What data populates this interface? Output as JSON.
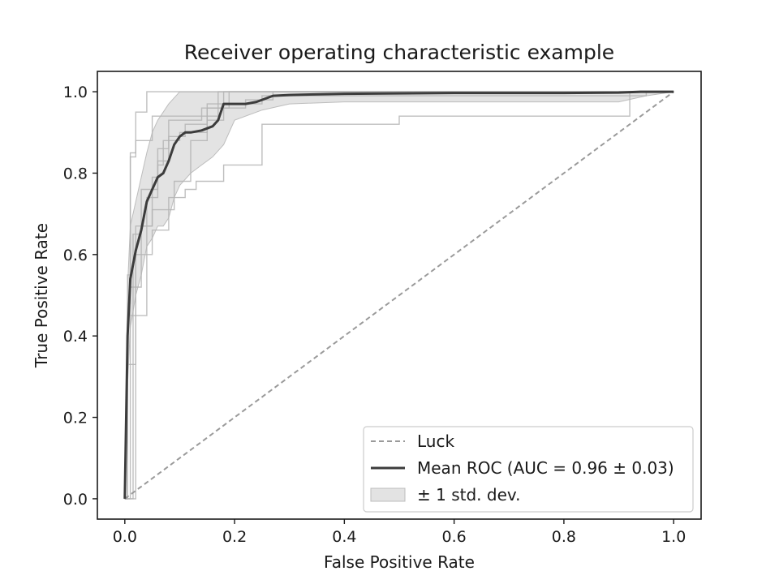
{
  "chart_data": {
    "type": "line",
    "title": "Receiver operating characteristic example",
    "xlabel": "False Positive Rate",
    "ylabel": "True Positive Rate",
    "xlim": [
      -0.05,
      1.05
    ],
    "ylim": [
      -0.05,
      1.05
    ],
    "xticks": [
      "0.0",
      "0.2",
      "0.4",
      "0.6",
      "0.8",
      "1.0"
    ],
    "yticks": [
      "0.0",
      "0.2",
      "0.4",
      "0.6",
      "0.8",
      "1.0"
    ],
    "grid": false,
    "legend_position": "lower-right",
    "legend": [
      {
        "label": "Luck",
        "style": "dashed-line"
      },
      {
        "label": "Mean ROC (AUC = 0.96 ± 0.03)",
        "style": "line"
      },
      {
        "label": "± 1 std. dev.",
        "style": "patch"
      }
    ],
    "colors": {
      "mean": "#3c3c3c",
      "fold": "#b4b4b4",
      "luck": "#9a9a9a",
      "band": "#e3e3e3",
      "band_edge": "#bdbdbd"
    },
    "series": [
      {
        "name": "Luck",
        "x": [
          0,
          1
        ],
        "y": [
          0,
          1
        ]
      },
      {
        "name": "Mean ROC (AUC = 0.96 ± 0.03)",
        "x": [
          0,
          0.005,
          0.01,
          0.02,
          0.03,
          0.04,
          0.05,
          0.06,
          0.07,
          0.08,
          0.09,
          0.1,
          0.11,
          0.12,
          0.14,
          0.16,
          0.17,
          0.18,
          0.2,
          0.22,
          0.24,
          0.25,
          0.27,
          0.3,
          0.4,
          0.5,
          0.6,
          0.7,
          0.8,
          0.9,
          0.94,
          1.0
        ],
        "y": [
          0,
          0.4,
          0.54,
          0.61,
          0.66,
          0.73,
          0.76,
          0.79,
          0.8,
          0.83,
          0.87,
          0.89,
          0.9,
          0.9,
          0.905,
          0.915,
          0.93,
          0.97,
          0.97,
          0.97,
          0.975,
          0.98,
          0.99,
          0.992,
          0.995,
          0.996,
          0.997,
          0.997,
          0.997,
          0.998,
          1.0,
          1.0
        ]
      },
      {
        "name": "",
        "x": [
          0,
          0.005,
          0.005,
          0.02,
          0.02,
          0.05,
          0.05,
          0.06,
          0.06,
          0.08,
          0.08,
          0.14,
          0.14,
          0.17,
          0.17,
          1.0
        ],
        "y": [
          0,
          0,
          0.33,
          0.33,
          0.67,
          0.67,
          0.79,
          0.79,
          0.86,
          0.86,
          0.93,
          0.93,
          0.96,
          0.96,
          1.0,
          1.0
        ]
      },
      {
        "name": "",
        "x": [
          0,
          0.01,
          0.01,
          0.03,
          0.03,
          0.05,
          0.05,
          0.09,
          0.09,
          0.12,
          0.12,
          0.15,
          0.15,
          0.18,
          0.18,
          1.0
        ],
        "y": [
          0,
          0,
          0.52,
          0.52,
          0.67,
          0.67,
          0.71,
          0.71,
          0.78,
          0.78,
          0.88,
          0.88,
          0.93,
          0.93,
          1.0,
          1.0
        ]
      },
      {
        "name": "",
        "x": [
          0,
          0.005,
          0.005,
          0.04,
          0.04,
          0.06,
          0.06,
          0.07,
          0.07,
          0.1,
          0.1,
          0.15,
          0.15,
          0.19,
          0.19,
          1.0
        ],
        "y": [
          0,
          0,
          0.45,
          0.45,
          0.74,
          0.74,
          0.82,
          0.82,
          0.88,
          0.88,
          0.9,
          0.9,
          0.96,
          0.96,
          1.0,
          1.0
        ]
      },
      {
        "name": "",
        "x": [
          0,
          0.02,
          0.02,
          0.05,
          0.05,
          0.08,
          0.08,
          0.11,
          0.11,
          0.13,
          0.13,
          0.18,
          0.18,
          0.25,
          0.25,
          0.5,
          0.5,
          0.92,
          0.92,
          1.0
        ],
        "y": [
          0,
          0,
          0.6,
          0.6,
          0.66,
          0.66,
          0.74,
          0.74,
          0.76,
          0.76,
          0.78,
          0.78,
          0.82,
          0.82,
          0.92,
          0.92,
          0.94,
          0.94,
          1.0,
          1.0
        ]
      },
      {
        "name": "",
        "x": [
          0,
          0.005,
          0.005,
          0.01,
          0.01,
          0.02,
          0.02,
          0.05,
          0.05,
          0.15,
          0.15,
          0.25,
          0.25,
          0.95,
          0.95,
          1.0
        ],
        "y": [
          0,
          0,
          0.55,
          0.55,
          0.84,
          0.84,
          0.88,
          0.88,
          0.94,
          0.94,
          0.97,
          0.97,
          0.99,
          0.99,
          1.0,
          1.0
        ]
      },
      {
        "name": "",
        "x": [
          0,
          0.015,
          0.015,
          0.03,
          0.03,
          0.06,
          0.06,
          0.08,
          0.08,
          0.11,
          0.11,
          0.15,
          0.15,
          0.17,
          0.17,
          0.22,
          0.22,
          0.27,
          0.27,
          1.0
        ],
        "y": [
          0,
          0,
          0.65,
          0.65,
          0.76,
          0.76,
          0.83,
          0.83,
          0.89,
          0.89,
          0.92,
          0.92,
          0.94,
          0.94,
          0.96,
          0.96,
          0.98,
          0.98,
          1.0,
          1.0
        ]
      },
      {
        "name": "",
        "x": [
          0,
          0.005,
          0.005,
          0.01,
          0.01,
          0.02,
          0.02,
          0.04,
          0.04,
          0.06,
          0.06,
          0.1,
          0.1,
          1.0
        ],
        "y": [
          0,
          0,
          0.48,
          0.48,
          0.85,
          0.85,
          0.95,
          0.95,
          1.0,
          1.0,
          1.0,
          1.0,
          1.0,
          1.0
        ]
      }
    ],
    "std_band": {
      "x": [
        0,
        0.005,
        0.01,
        0.02,
        0.03,
        0.04,
        0.05,
        0.06,
        0.07,
        0.08,
        0.09,
        0.1,
        0.12,
        0.14,
        0.16,
        0.18,
        0.2,
        0.25,
        0.3,
        0.4,
        0.5,
        0.6,
        0.7,
        0.8,
        0.9,
        0.95,
        1.0
      ],
      "upper": [
        0,
        0.52,
        0.67,
        0.73,
        0.79,
        0.85,
        0.9,
        0.93,
        0.95,
        0.97,
        0.985,
        1.0,
        1.0,
        1.0,
        1.0,
        1.0,
        1.0,
        1.0,
        1.0,
        1.0,
        1.0,
        1.0,
        1.0,
        1.0,
        1.0,
        1.0,
        1.0
      ],
      "lower": [
        0,
        0.28,
        0.42,
        0.5,
        0.55,
        0.62,
        0.64,
        0.67,
        0.67,
        0.69,
        0.74,
        0.77,
        0.8,
        0.82,
        0.84,
        0.87,
        0.93,
        0.955,
        0.97,
        0.975,
        0.975,
        0.975,
        0.975,
        0.975,
        0.975,
        0.99,
        1.0
      ]
    }
  }
}
